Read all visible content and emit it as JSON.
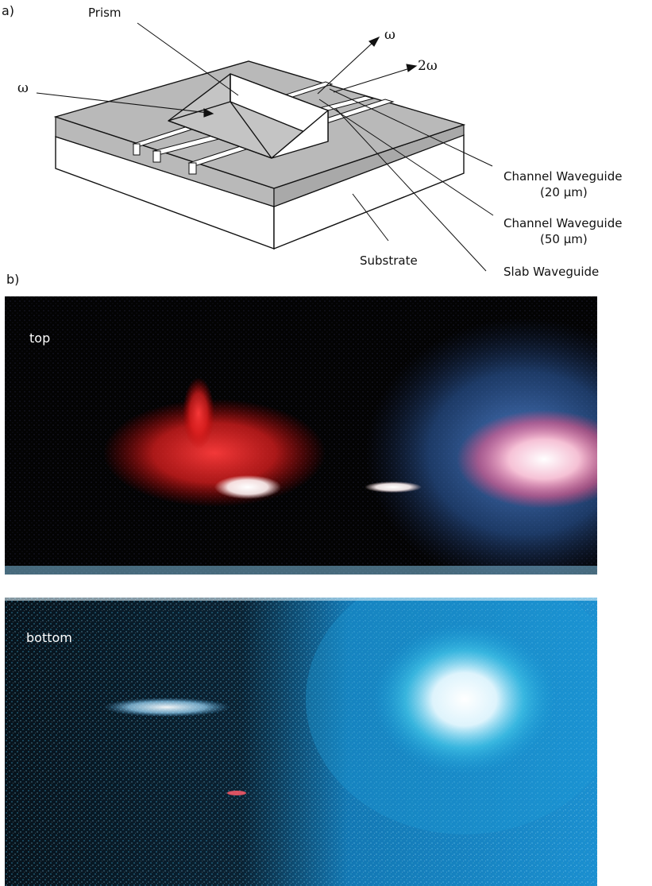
{
  "panel_a": {
    "tag": "a)",
    "labels": {
      "prism": "Prism",
      "omega_in": "ω",
      "omega_out": "ω",
      "two_omega": "2ω",
      "channel_20_title": "Channel Waveguide",
      "channel_20_size": "(20 µm)",
      "channel_50_title": "Channel Waveguide",
      "channel_50_size": "(50 µm)",
      "slab": "Slab Waveguide",
      "substrate": "Substrate"
    },
    "colors": {
      "slab": "#b9b9b9",
      "substrate": "#ffffff",
      "line": "#111111"
    }
  },
  "panel_b": {
    "tag": "b)",
    "images": [
      {
        "label": "top",
        "background": "#030303",
        "glow_colors": [
          "#ff2a2a",
          "#3d7fd6",
          "#ffffff"
        ]
      },
      {
        "label": "bottom",
        "background": "#061018",
        "glow_colors": [
          "#1d8fd0",
          "#2aa7e6",
          "#ffffff"
        ]
      }
    ]
  }
}
